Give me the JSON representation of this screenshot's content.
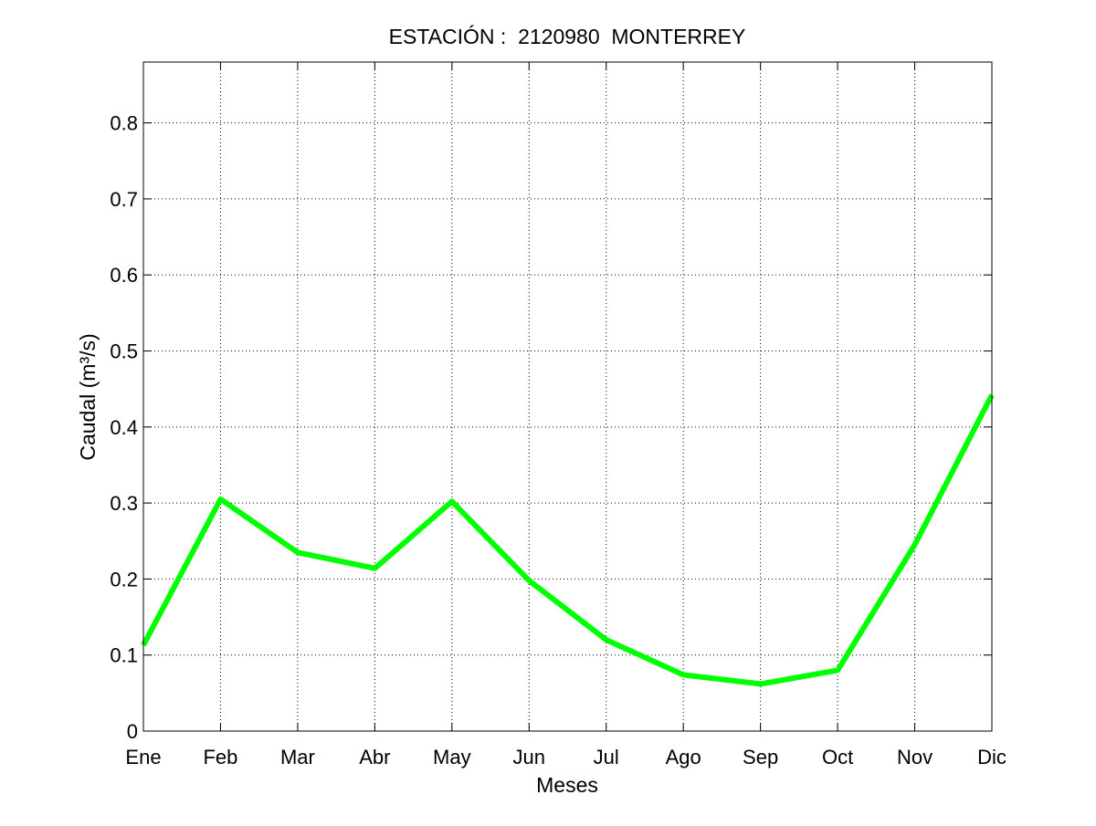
{
  "chart_data": {
    "type": "line",
    "title": "ESTACIÓN :  2120980  MONTERREY",
    "xlabel": "Meses",
    "ylabel": "Caudal (m³/s)",
    "categories": [
      "Ene",
      "Feb",
      "Mar",
      "Abr",
      "May",
      "Jun",
      "Jul",
      "Ago",
      "Sep",
      "Oct",
      "Nov",
      "Dic"
    ],
    "series": [
      {
        "values": [
          0.113,
          0.305,
          0.235,
          0.214,
          0.302,
          0.198,
          0.12,
          0.074,
          0.062,
          0.08,
          0.245,
          0.442
        ],
        "color": "#00ff00"
      }
    ],
    "ylim": [
      0,
      0.88
    ],
    "yticks": [
      0,
      0.1,
      0.2,
      0.3,
      0.4,
      0.5,
      0.6,
      0.7,
      0.8
    ],
    "ytick_labels": [
      "0",
      "0.1",
      "0.2",
      "0.3",
      "0.4",
      "0.5",
      "0.6",
      "0.7",
      "0.8"
    ],
    "grid": true,
    "legend": "none"
  }
}
